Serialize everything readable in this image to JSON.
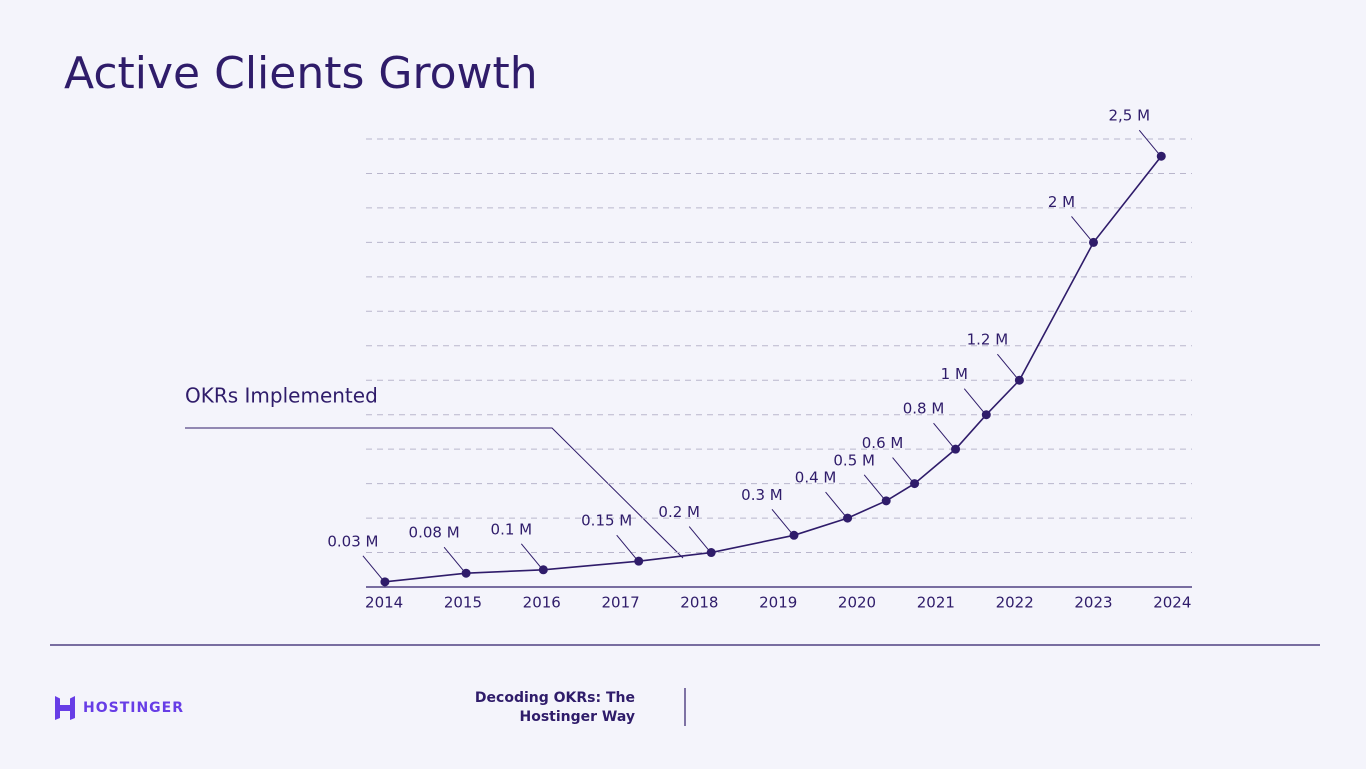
{
  "chart_data": {
    "type": "line",
    "title": "Active Clients Growth",
    "x": [
      2014.01,
      2015.04,
      2016.02,
      2017.23,
      2018.15,
      2019.2,
      2019.88,
      2020.37,
      2020.73,
      2021.25,
      2021.64,
      2022.06,
      2023.0,
      2023.86
    ],
    "values": [
      0.03,
      0.08,
      0.1,
      0.15,
      0.2,
      0.3,
      0.4,
      0.5,
      0.6,
      0.8,
      1,
      1.2,
      2,
      2.5
    ],
    "value_labels": [
      "0.03 M",
      "0.08 M",
      "0.1 M",
      "0.15 M",
      "0.2 M",
      "0.3 M",
      "0.4 M",
      "0.5 M",
      "0.6 M",
      "0.8 M",
      "1 M",
      "1.2 M",
      "2 M",
      "2,5 M"
    ],
    "color": "#2f1c6a",
    "xlim": [
      2013.77,
      2024.25
    ],
    "xticks": [
      2014,
      2015,
      2016,
      2017,
      2018,
      2019,
      2020,
      2021,
      2022,
      2023,
      2024
    ],
    "ylim": [
      0,
      2.6
    ],
    "yticks": [
      0.2,
      0.4,
      0.6,
      0.8,
      1,
      1.2,
      1.4,
      1.6,
      1.8,
      2,
      2.2,
      2.4,
      2.6
    ],
    "grid": true,
    "annotation": "OKRs Implemented"
  },
  "footer": {
    "brand": "HOSTINGER",
    "caption": [
      "Decoding OKRs: The",
      "Hostinger Way"
    ]
  }
}
